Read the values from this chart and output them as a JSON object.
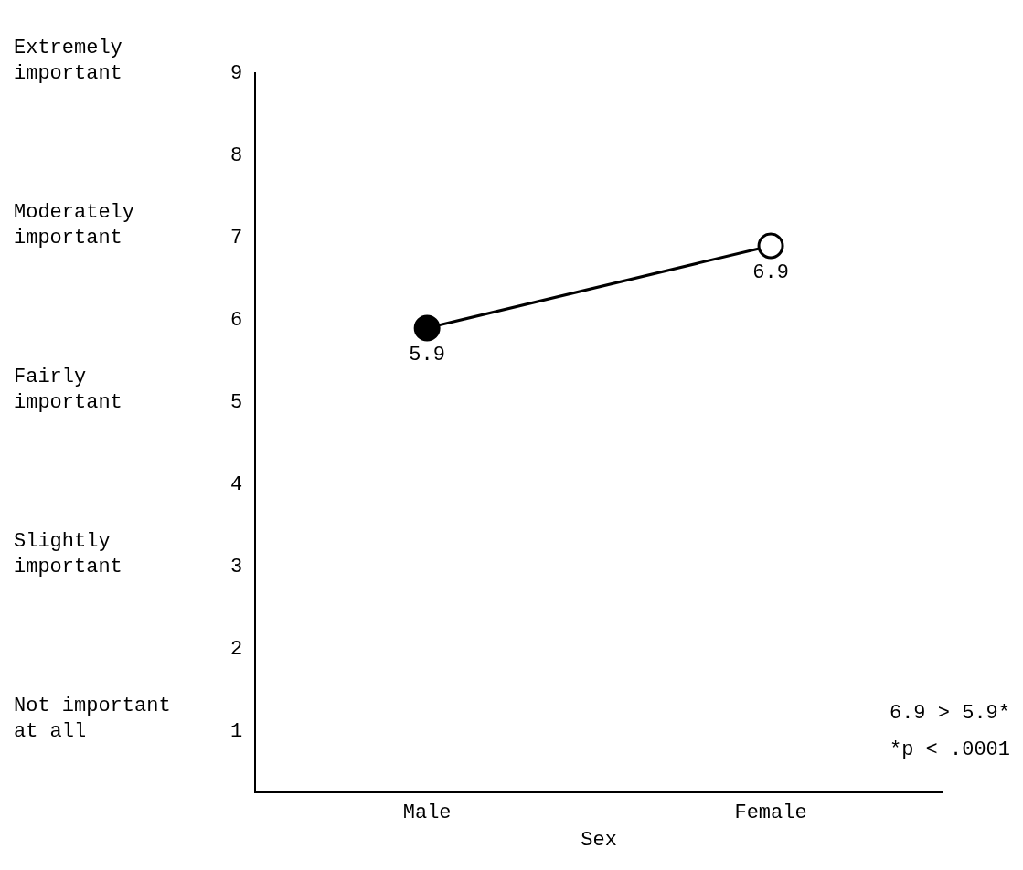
{
  "chart_data": {
    "type": "line",
    "xlabel": "Sex",
    "categories": [
      "Male",
      "Female"
    ],
    "series": [
      {
        "color": "#000000",
        "colors": [
          "#000000",
          "#ffffff"
        ],
        "values": [
          5.9,
          6.9
        ]
      }
    ],
    "ylim": [
      0.25,
      9
    ],
    "yticks": [
      1,
      2,
      3,
      4,
      5,
      6,
      7,
      8,
      9
    ],
    "grid": false,
    "legend": false,
    "marker": "circle",
    "line_style": "solid",
    "data_labels": true,
    "annotations": [
      "Extremely important",
      "Moderately important",
      "Fairly important",
      "Slightly important",
      "Not important at all",
      "6.9 > 5.9*",
      "*p < .0001"
    ]
  }
}
